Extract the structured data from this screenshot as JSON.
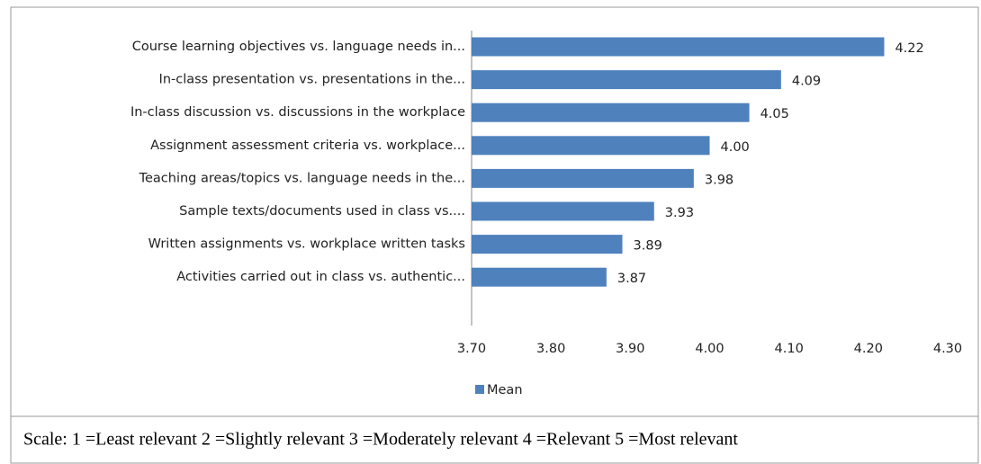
{
  "chart_data": {
    "type": "bar",
    "orientation": "horizontal",
    "categories": [
      "Course learning objectives vs. language needs in...",
      "In-class presentation vs. presentations in the...",
      "In-class discussion vs. discussions in the workplace",
      "Assignment assessment criteria vs. workplace...",
      "Teaching areas/topics vs. language needs in the...",
      "Sample texts/documents used in class vs....",
      "Written assignments vs. workplace written tasks",
      "Activities carried out in class vs. authentic..."
    ],
    "series": [
      {
        "name": "Mean",
        "color": "#4f81bd",
        "values": [
          4.22,
          4.09,
          4.05,
          4.0,
          3.98,
          3.93,
          3.89,
          3.87
        ],
        "value_labels": [
          "4.22",
          "4.09",
          "4.05",
          "4.00",
          "3.98",
          "3.93",
          "3.89",
          "3.87"
        ]
      }
    ],
    "xlim": [
      3.7,
      4.3
    ],
    "xticks": [
      {
        "value": 3.7,
        "label": "3.70"
      },
      {
        "value": 3.8,
        "label": "3.80"
      },
      {
        "value": 3.9,
        "label": "3.90"
      },
      {
        "value": 4.0,
        "label": "4.00"
      },
      {
        "value": 4.1,
        "label": "4.10"
      },
      {
        "value": 4.2,
        "label": "4.20"
      },
      {
        "value": 4.3,
        "label": "4.30"
      }
    ],
    "grid": false,
    "legend": "bottom",
    "caption": "Scale: 1 =Least relevant 2 =Slightly relevant 3 =Moderately relevant 4 =Relevant 5 =Most relevant"
  }
}
